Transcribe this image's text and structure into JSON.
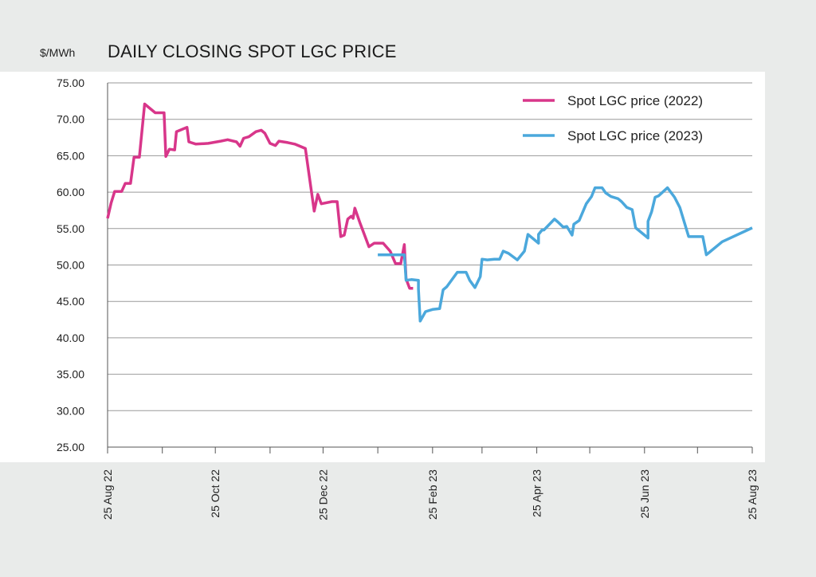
{
  "header": {
    "unit": "$/MWh",
    "title": "DAILY CLOSING SPOT LGC PRICE"
  },
  "chart_data": {
    "type": "line",
    "title": "DAILY CLOSING SPOT LGC PRICE",
    "ylabel": "$/MWh",
    "xlabel": "",
    "x_axis_type": "date",
    "xlim": [
      "2022-08-25",
      "2023-08-25"
    ],
    "ylim": [
      25,
      75
    ],
    "y_ticks": [
      25,
      30,
      35,
      40,
      45,
      50,
      55,
      60,
      65,
      70,
      75
    ],
    "y_tick_labels": [
      "25.00",
      "30.00",
      "35.00",
      "40.00",
      "45.00",
      "50.00",
      "55.00",
      "60.00",
      "65.00",
      "70.00",
      "75.00"
    ],
    "x_tick_labels": [
      {
        "date": "2022-08-25",
        "label": "25 Aug 22"
      },
      {
        "date": "2022-10-25",
        "label": "25 Oct 22"
      },
      {
        "date": "2022-12-25",
        "label": "25 Dec 22"
      },
      {
        "date": "2023-02-25",
        "label": "25 Feb 23"
      },
      {
        "date": "2023-04-25",
        "label": "25 Apr 23"
      },
      {
        "date": "2023-06-25",
        "label": "25 Jun 23"
      },
      {
        "date": "2023-08-25",
        "label": "25 Aug 23"
      }
    ],
    "minor_x_ticks": [
      "2022-09-25",
      "2022-11-25",
      "2023-01-25",
      "2023-03-25",
      "2023-05-25",
      "2023-07-25"
    ],
    "grid": "horizontal",
    "legend_position": "top-right",
    "colors": {
      "series_2022": "#d8368a",
      "series_2023": "#4ba8dc",
      "grid": "#9a9a9a",
      "axis": "#555555"
    },
    "series": [
      {
        "name": "Spot LGC price (2022)",
        "color": "#d8368a",
        "points": [
          [
            "2022-08-25",
            56.4
          ],
          [
            "2022-08-27",
            58.5
          ],
          [
            "2022-08-29",
            60.1
          ],
          [
            "2022-09-02",
            60.1
          ],
          [
            "2022-09-04",
            61.2
          ],
          [
            "2022-09-07",
            61.2
          ],
          [
            "2022-09-09",
            64.8
          ],
          [
            "2022-09-12",
            64.8
          ],
          [
            "2022-09-15",
            72.1
          ],
          [
            "2022-09-21",
            70.9
          ],
          [
            "2022-09-26",
            70.9
          ],
          [
            "2022-09-27",
            64.9
          ],
          [
            "2022-09-29",
            65.9
          ],
          [
            "2022-10-02",
            65.8
          ],
          [
            "2022-10-03",
            68.3
          ],
          [
            "2022-10-09",
            68.9
          ],
          [
            "2022-10-10",
            66.9
          ],
          [
            "2022-10-14",
            66.6
          ],
          [
            "2022-10-21",
            66.7
          ],
          [
            "2022-10-28",
            67.0
          ],
          [
            "2022-11-01",
            67.2
          ],
          [
            "2022-11-06",
            66.9
          ],
          [
            "2022-11-08",
            66.3
          ],
          [
            "2022-11-10",
            67.4
          ],
          [
            "2022-11-13",
            67.6
          ],
          [
            "2022-11-17",
            68.3
          ],
          [
            "2022-11-20",
            68.5
          ],
          [
            "2022-11-22",
            68.1
          ],
          [
            "2022-11-25",
            66.7
          ],
          [
            "2022-11-28",
            66.4
          ],
          [
            "2022-11-30",
            67.0
          ],
          [
            "2022-12-05",
            66.8
          ],
          [
            "2022-12-09",
            66.6
          ],
          [
            "2022-12-15",
            66.0
          ],
          [
            "2022-12-20",
            57.4
          ],
          [
            "2022-12-22",
            59.7
          ],
          [
            "2022-12-24",
            58.4
          ],
          [
            "2022-12-30",
            58.7
          ],
          [
            "2023-01-02",
            58.7
          ],
          [
            "2023-01-04",
            53.9
          ],
          [
            "2023-01-06",
            54.1
          ],
          [
            "2023-01-08",
            56.3
          ],
          [
            "2023-01-10",
            56.7
          ],
          [
            "2023-01-11",
            56.4
          ],
          [
            "2023-01-12",
            57.8
          ],
          [
            "2023-01-15",
            55.7
          ],
          [
            "2023-01-20",
            52.5
          ],
          [
            "2023-01-23",
            53.0
          ],
          [
            "2023-01-28",
            53.0
          ],
          [
            "2023-02-01",
            51.9
          ],
          [
            "2023-02-04",
            50.2
          ],
          [
            "2023-02-07",
            50.2
          ],
          [
            "2023-02-09",
            52.8
          ],
          [
            "2023-02-10",
            48.1
          ],
          [
            "2023-02-12",
            46.8
          ],
          [
            "2023-02-14",
            46.8
          ]
        ]
      },
      {
        "name": "Spot LGC price (2023)",
        "color": "#4ba8dc",
        "points": [
          [
            "2023-01-25",
            51.4
          ],
          [
            "2023-02-09",
            51.4
          ],
          [
            "2023-02-10",
            47.9
          ],
          [
            "2023-02-13",
            48.0
          ],
          [
            "2023-02-17",
            47.9
          ],
          [
            "2023-02-17",
            46.7
          ],
          [
            "2023-02-18",
            42.3
          ],
          [
            "2023-02-21",
            43.6
          ],
          [
            "2023-02-25",
            43.9
          ],
          [
            "2023-02-29",
            44.0
          ],
          [
            "2023-03-03",
            46.6
          ],
          [
            "2023-03-05",
            47.0
          ],
          [
            "2023-03-11",
            49.0
          ],
          [
            "2023-03-16",
            49.0
          ],
          [
            "2023-03-18",
            47.9
          ],
          [
            "2023-03-21",
            46.9
          ],
          [
            "2023-03-24",
            48.4
          ],
          [
            "2023-03-25",
            50.8
          ],
          [
            "2023-03-28",
            50.7
          ],
          [
            "2023-04-01",
            50.8
          ],
          [
            "2023-04-04",
            50.8
          ],
          [
            "2023-04-06",
            51.9
          ],
          [
            "2023-04-09",
            51.6
          ],
          [
            "2023-04-14",
            50.7
          ],
          [
            "2023-04-18",
            51.9
          ],
          [
            "2023-04-20",
            54.2
          ],
          [
            "2023-04-23",
            53.6
          ],
          [
            "2023-04-26",
            53.0
          ],
          [
            "2023-04-26",
            54.2
          ],
          [
            "2023-04-28",
            54.8
          ],
          [
            "2023-04-29",
            54.8
          ],
          [
            "2023-05-05",
            56.3
          ],
          [
            "2023-05-07",
            55.9
          ],
          [
            "2023-05-10",
            55.2
          ],
          [
            "2023-05-12",
            55.3
          ],
          [
            "2023-05-15",
            54.1
          ],
          [
            "2023-05-16",
            55.6
          ],
          [
            "2023-05-19",
            56.1
          ],
          [
            "2023-05-23",
            58.4
          ],
          [
            "2023-05-26",
            59.4
          ],
          [
            "2023-05-28",
            60.6
          ],
          [
            "2023-06-01",
            60.6
          ],
          [
            "2023-06-03",
            59.9
          ],
          [
            "2023-06-06",
            59.4
          ],
          [
            "2023-06-10",
            59.1
          ],
          [
            "2023-06-12",
            58.7
          ],
          [
            "2023-06-15",
            57.9
          ],
          [
            "2023-06-18",
            57.6
          ],
          [
            "2023-06-20",
            55.1
          ],
          [
            "2023-06-25",
            54.1
          ],
          [
            "2023-06-27",
            53.7
          ],
          [
            "2023-06-27",
            56.0
          ],
          [
            "2023-06-29",
            57.3
          ],
          [
            "2023-07-01",
            59.3
          ],
          [
            "2023-07-03",
            59.5
          ],
          [
            "2023-07-08",
            60.6
          ],
          [
            "2023-07-12",
            59.3
          ],
          [
            "2023-07-15",
            57.9
          ],
          [
            "2023-07-20",
            53.9
          ],
          [
            "2023-07-28",
            53.9
          ],
          [
            "2023-07-30",
            51.4
          ],
          [
            "2023-08-08",
            53.2
          ],
          [
            "2023-08-25",
            55.1
          ]
        ]
      }
    ]
  }
}
